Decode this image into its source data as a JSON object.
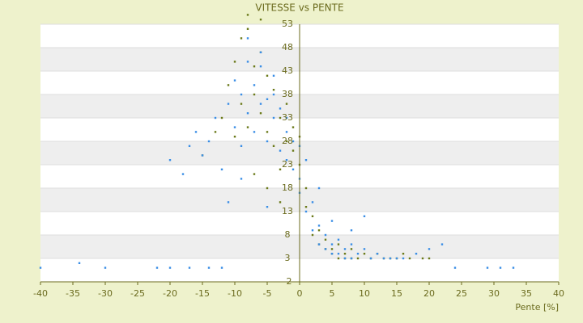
{
  "chart_data": {
    "type": "scatter",
    "title": "VITESSE vs PENTE",
    "x_label": "Pente [%]",
    "xlim": [
      -40,
      40
    ],
    "xticks": [
      -40,
      -35,
      -30,
      -25,
      -20,
      -15,
      -10,
      -5,
      0,
      5,
      10,
      15,
      20,
      25,
      30,
      35,
      40
    ],
    "ylim": [
      -2,
      53
    ],
    "yticks": [
      -2,
      3,
      8,
      13,
      18,
      23,
      28,
      33,
      38,
      43,
      48,
      53
    ],
    "grid": "bands",
    "series": [
      {
        "color": "#6b7a1a",
        "x": [
          -12,
          -11,
          -10,
          -10,
          -9,
          -9,
          -8,
          -8,
          -7,
          -7,
          -6,
          -6,
          -5,
          -5,
          -4,
          -4,
          -3,
          -3,
          -2,
          -2,
          -1,
          -1,
          0,
          0,
          1,
          1,
          2,
          2,
          3,
          3,
          4,
          4,
          5,
          5,
          6,
          6,
          7,
          7,
          8,
          8,
          9,
          10,
          11,
          12,
          13,
          14,
          15,
          16,
          17,
          19,
          20,
          -15,
          -13,
          -7,
          -5,
          -3,
          -8,
          -6
        ],
        "values": [
          33,
          40,
          29,
          45,
          36,
          50,
          31,
          52,
          38,
          44,
          34,
          47,
          42,
          30,
          39,
          27,
          33,
          22,
          36,
          28,
          26,
          31,
          23,
          29,
          18,
          14,
          12,
          8,
          9,
          6,
          7,
          5,
          5,
          4,
          6,
          3,
          4,
          3,
          5,
          3,
          3,
          4,
          3,
          4,
          3,
          3,
          3,
          4,
          3,
          3,
          3,
          25,
          30,
          21,
          18,
          15,
          55,
          54
        ]
      },
      {
        "color": "#3a8ee6",
        "x": [
          -40,
          -34,
          -30,
          -22,
          -20,
          -17,
          -14,
          -12,
          -20,
          -18,
          -17,
          -16,
          -15,
          -14,
          -13,
          -12,
          -11,
          -10,
          -10,
          -9,
          -9,
          -8,
          -8,
          -7,
          -7,
          -6,
          -6,
          -5,
          -5,
          -4,
          -4,
          -3,
          -3,
          -2,
          -2,
          -1,
          -1,
          0,
          0,
          0,
          1,
          1,
          2,
          2,
          3,
          3,
          4,
          4,
          5,
          5,
          6,
          6,
          7,
          7,
          8,
          8,
          9,
          10,
          11,
          12,
          13,
          14,
          15,
          16,
          18,
          20,
          22,
          24,
          29,
          31,
          33,
          -8,
          -6,
          -4,
          -2,
          3,
          5,
          8,
          10,
          -11,
          -9,
          -5
        ],
        "values": [
          1,
          2,
          1,
          1,
          1,
          1,
          1,
          1,
          24,
          21,
          27,
          30,
          25,
          28,
          33,
          22,
          36,
          31,
          41,
          38,
          27,
          45,
          34,
          40,
          30,
          44,
          36,
          37,
          28,
          42,
          33,
          35,
          26,
          30,
          24,
          28,
          22,
          27,
          20,
          17,
          24,
          13,
          15,
          9,
          10,
          6,
          8,
          5,
          6,
          4,
          7,
          4,
          5,
          3,
          6,
          3,
          4,
          5,
          3,
          4,
          3,
          3,
          3,
          3,
          4,
          5,
          6,
          1,
          1,
          1,
          1,
          50,
          47,
          38,
          33,
          18,
          11,
          9,
          12,
          15,
          20,
          14
        ]
      }
    ]
  }
}
